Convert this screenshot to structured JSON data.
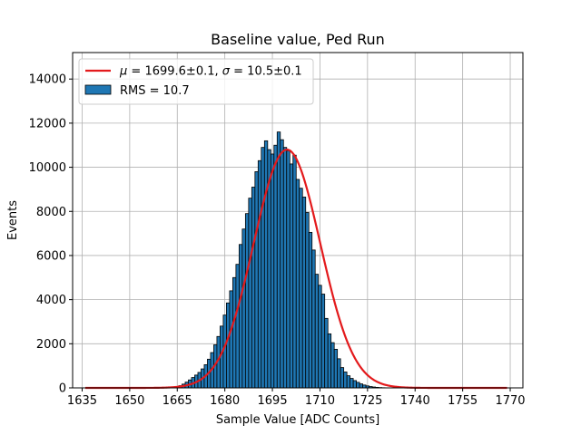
{
  "chart_data": {
    "type": "bar",
    "title": "Baseline value, Ped Run",
    "xlabel": "Sample Value [ADC Counts]",
    "ylabel": "Events",
    "xlim": [
      1632,
      1774
    ],
    "ylim": [
      0,
      15200
    ],
    "xticks": [
      1635,
      1650,
      1665,
      1680,
      1695,
      1710,
      1725,
      1740,
      1755,
      1770
    ],
    "yticks": [
      0,
      2000,
      4000,
      6000,
      8000,
      10000,
      12000,
      14000
    ],
    "grid": true,
    "legend_position": "top-left",
    "colors": {
      "histogram": "#1f77b4",
      "fit": "#e31a1c",
      "edge": "#000000"
    },
    "histogram": {
      "name": "RMS = 10.7",
      "bin_width": 1,
      "x": [
        1666,
        1667,
        1668,
        1669,
        1670,
        1671,
        1672,
        1673,
        1674,
        1675,
        1676,
        1677,
        1678,
        1679,
        1680,
        1681,
        1682,
        1683,
        1684,
        1685,
        1686,
        1687,
        1688,
        1689,
        1690,
        1691,
        1692,
        1693,
        1694,
        1695,
        1696,
        1697,
        1698,
        1699,
        1700,
        1701,
        1702,
        1703,
        1704,
        1705,
        1706,
        1707,
        1708,
        1709,
        1710,
        1711,
        1712,
        1713,
        1714,
        1715,
        1716,
        1717,
        1718,
        1719,
        1720,
        1721,
        1722,
        1723,
        1724,
        1725,
        1726,
        1727,
        1728,
        1729,
        1730,
        1731,
        1732
      ],
      "values": [
        100,
        170,
        260,
        360,
        470,
        580,
        700,
        860,
        1050,
        1300,
        1600,
        1950,
        2330,
        2800,
        3300,
        3850,
        4400,
        5000,
        5600,
        6500,
        7200,
        7900,
        8600,
        9100,
        9800,
        10300,
        10900,
        11200,
        10800,
        10600,
        11000,
        11600,
        11250,
        10900,
        10750,
        10150,
        10550,
        9450,
        9050,
        8650,
        7950,
        7050,
        6250,
        5150,
        4650,
        4250,
        3150,
        2450,
        2050,
        1750,
        1320,
        920,
        720,
        550,
        430,
        330,
        250,
        180,
        130,
        90,
        60,
        40,
        25,
        15,
        8,
        4,
        2
      ]
    },
    "fit": {
      "name": "$\\mu = 1699.6\\pm0.1$, $\\sigma = 10.5\\pm0.1$",
      "type": "gaussian",
      "mu": 1699.6,
      "sigma": 10.5,
      "amplitude": 10800,
      "x_range": [
        1636,
        1769
      ]
    }
  }
}
